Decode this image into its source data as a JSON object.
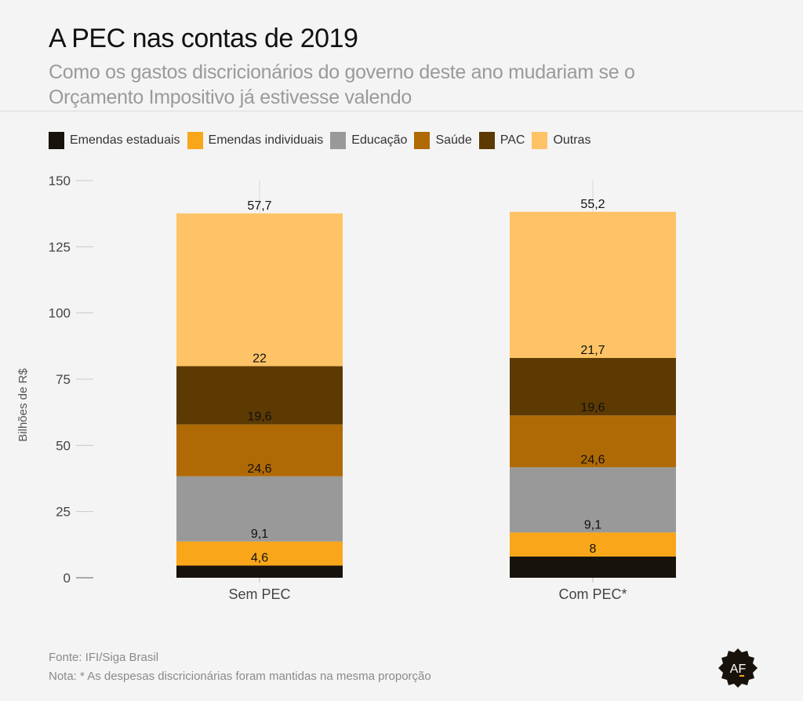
{
  "header": {
    "title": "A PEC nas contas de 2019",
    "subtitle": "Como os gastos discricionários do governo deste ano mudariam se o Orçamento Impositivo já estivesse valendo"
  },
  "legend": [
    {
      "label": "Emendas estaduais",
      "color": "#17130c"
    },
    {
      "label": "Emendas individuais",
      "color": "#f9a61b"
    },
    {
      "label": "Educação",
      "color": "#999999"
    },
    {
      "label": "Saúde",
      "color": "#b06a05"
    },
    {
      "label": "PAC",
      "color": "#5d3a02"
    },
    {
      "label": "Outras",
      "color": "#fdc366"
    }
  ],
  "chart_data": {
    "type": "bar",
    "stacked": true,
    "title": "A PEC nas contas de 2019",
    "xlabel": "",
    "ylabel": "Bilhões de R$",
    "ylim": [
      0,
      150
    ],
    "yticks": [
      0,
      25,
      50,
      75,
      100,
      125,
      150
    ],
    "categories": [
      "Sem PEC",
      "Com PEC*"
    ],
    "legend_position": "top-left",
    "grid": false,
    "series": [
      {
        "name": "Emendas estaduais",
        "color": "#17130c",
        "values": [
          4.6,
          8
        ],
        "labels": [
          "4,6",
          "8"
        ]
      },
      {
        "name": "Emendas individuais",
        "color": "#f9a61b",
        "values": [
          9.1,
          9.1
        ],
        "labels": [
          "9,1",
          "9,1"
        ]
      },
      {
        "name": "Educação",
        "color": "#999999",
        "values": [
          24.6,
          24.6
        ],
        "labels": [
          "24,6",
          "24,6"
        ]
      },
      {
        "name": "Saúde",
        "color": "#b06a05",
        "values": [
          19.6,
          19.6
        ],
        "labels": [
          "19,6",
          "19,6"
        ]
      },
      {
        "name": "PAC",
        "color": "#5d3a02",
        "values": [
          22,
          21.7
        ],
        "labels": [
          "22",
          "21,7"
        ]
      },
      {
        "name": "Outras",
        "color": "#fdc366",
        "values": [
          57.7,
          55.2
        ],
        "labels": [
          "57,7",
          "55,2"
        ]
      }
    ]
  },
  "footer": {
    "source": "Fonte: IFI/Siga Brasil",
    "note": "Nota: * As despesas discricionárias foram mantidas na mesma proporção"
  },
  "logo": {
    "text": "AF"
  }
}
